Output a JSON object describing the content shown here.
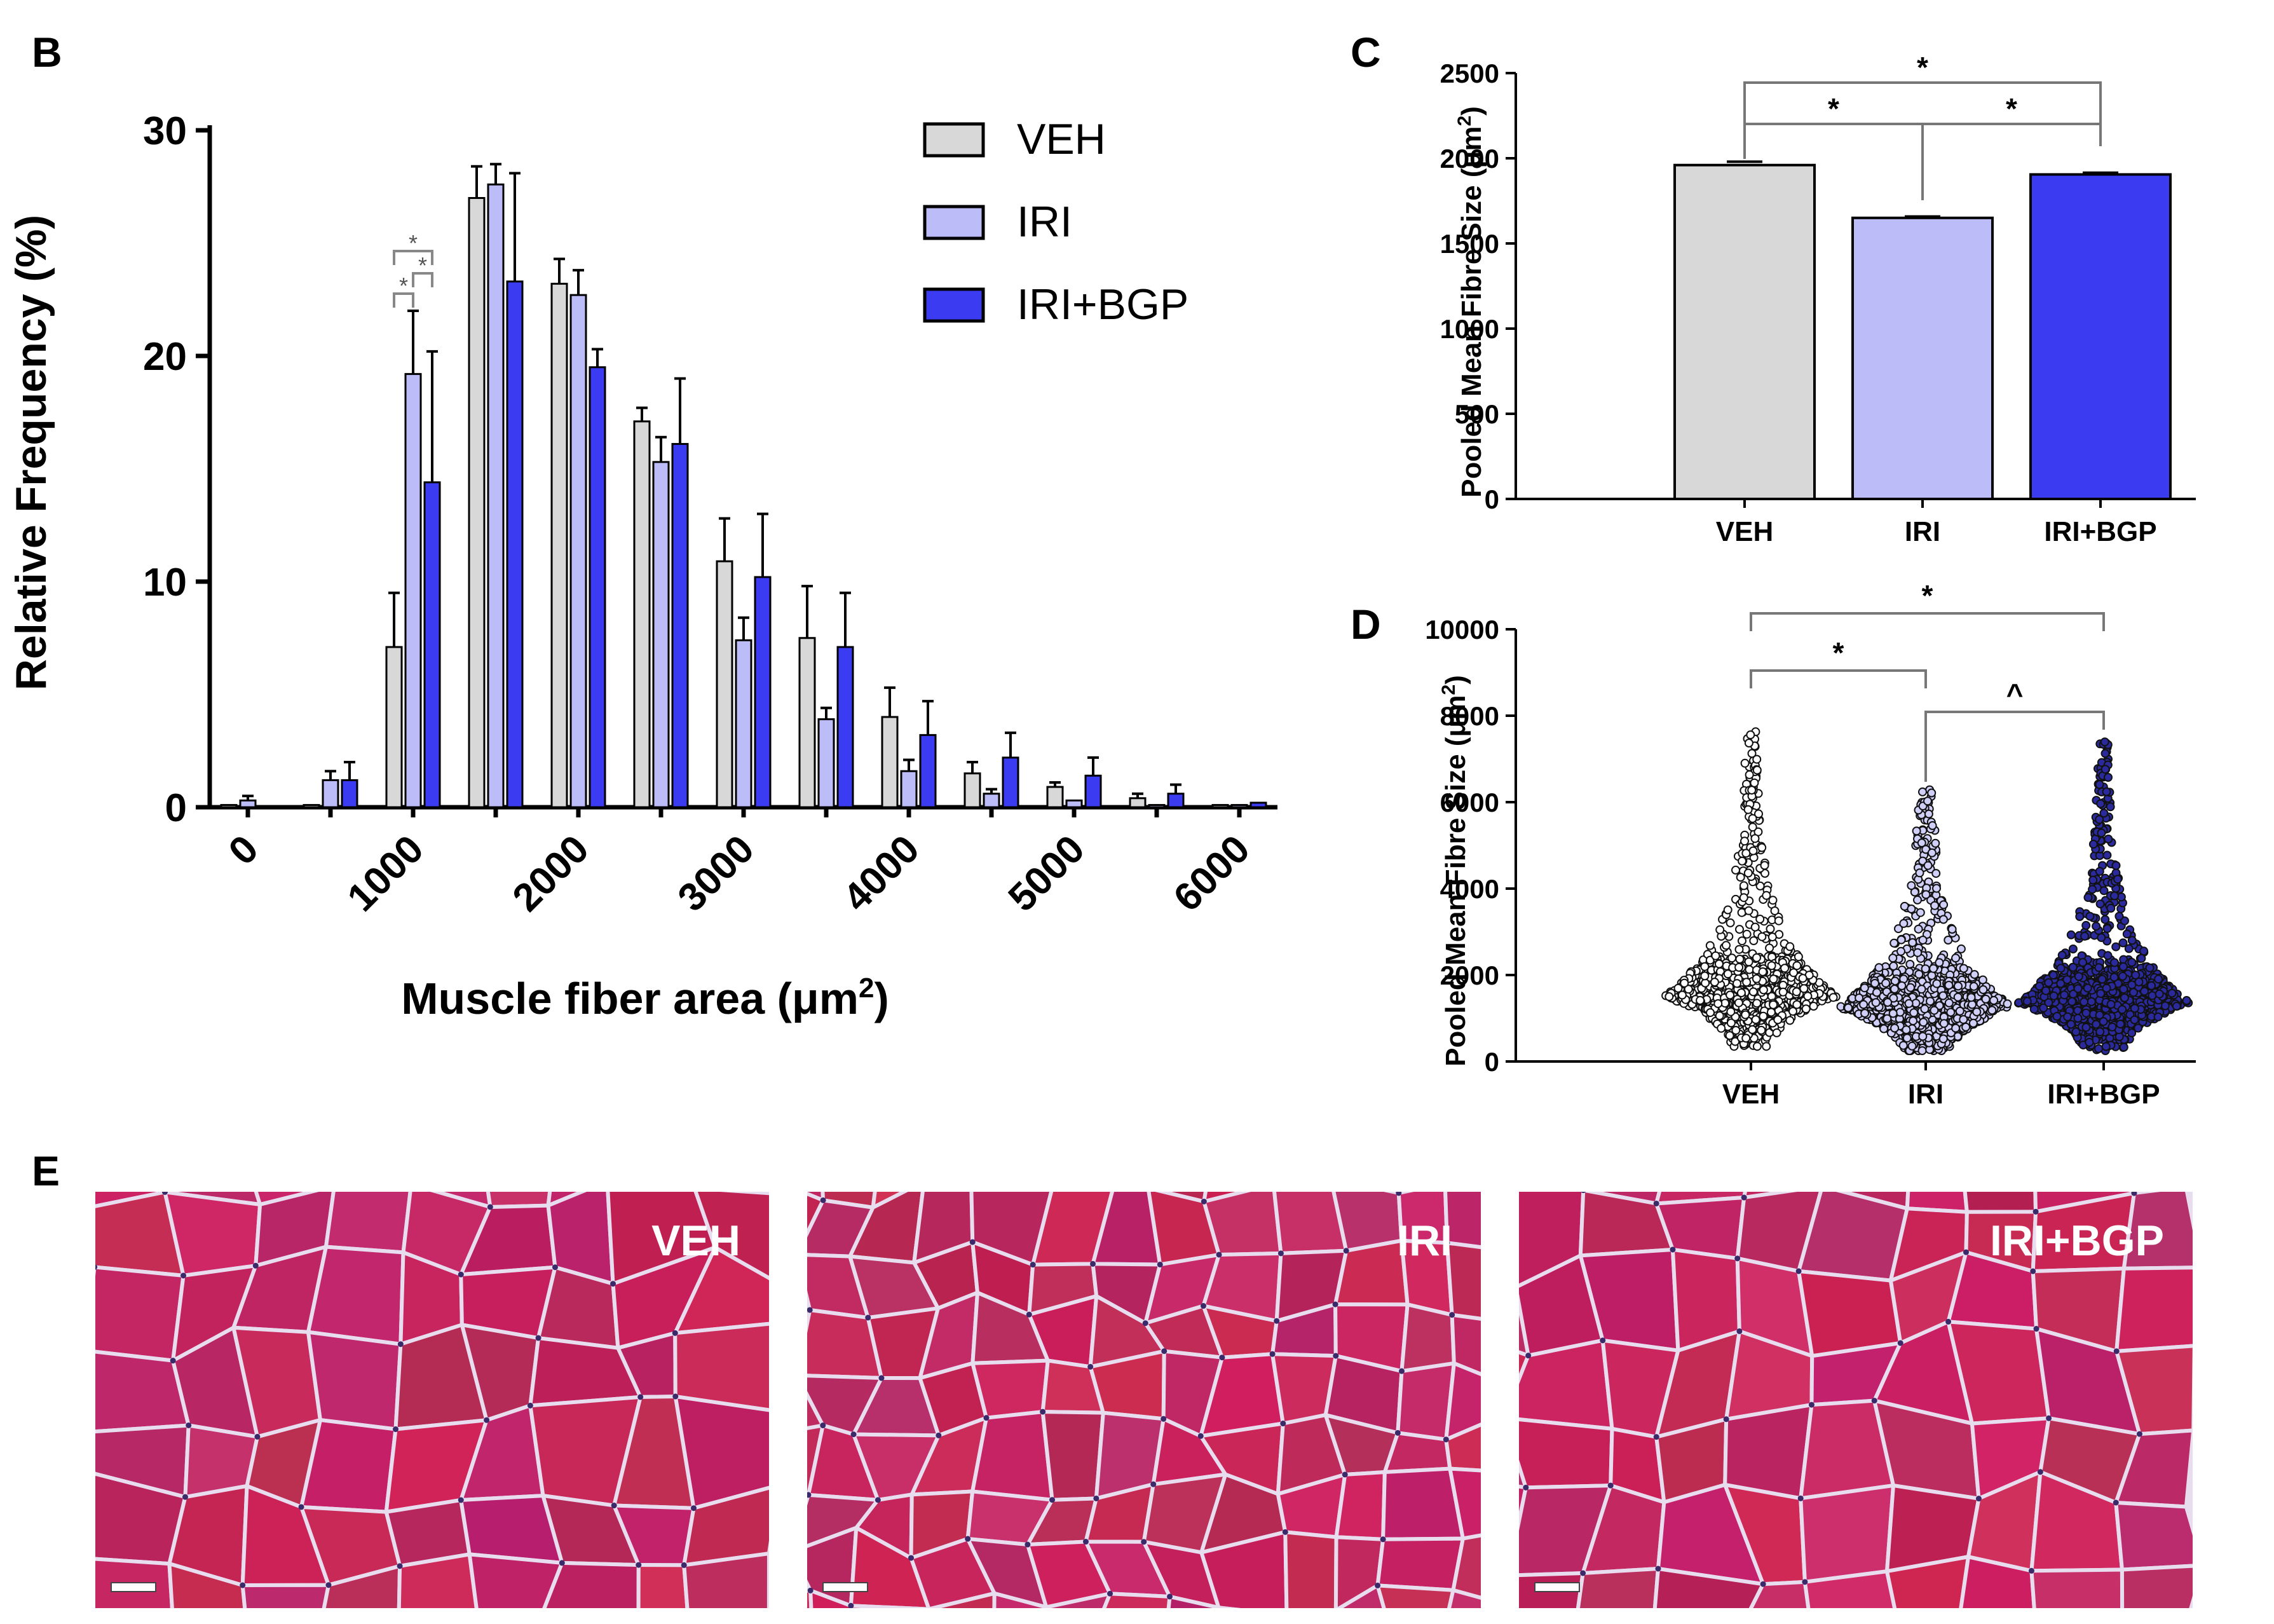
{
  "colors": {
    "VEH": "#d8d8d8",
    "IRI": "#bcbcf8",
    "IRI+BGP": "#3b3bf2",
    "tissue": "#c0306a",
    "membrane": "#e8dcef"
  },
  "panels": {
    "B": "B",
    "C": "C",
    "D": "D",
    "E": "E"
  },
  "chart_data": [
    {
      "panel": "B",
      "type": "bar",
      "title": "",
      "xlabel": "Muscle fiber area (μm",
      "xlabel_sup": "2",
      "xlabel_close": ")",
      "ylabel": "Relative Frequency (%)",
      "ylim": [
        0,
        30
      ],
      "yticks": [
        "0",
        "10",
        "20",
        "30"
      ],
      "xticks": [
        "0",
        "1000",
        "2000",
        "3000",
        "4000",
        "5000",
        "6000"
      ],
      "xtick_values": [
        0,
        1000,
        2000,
        3000,
        4000,
        5000,
        6000
      ],
      "bin_centers": [
        0,
        500,
        1000,
        1500,
        2000,
        2500,
        3000,
        3500,
        4000,
        4500,
        5000,
        5500,
        6000
      ],
      "legend": [
        "VEH",
        "IRI",
        "IRI+BGP"
      ],
      "legend_position": "top-right",
      "series": [
        {
          "name": "VEH",
          "values": [
            0.1,
            0.1,
            7.1,
            27.0,
            23.2,
            17.1,
            10.9,
            7.5,
            4.0,
            1.5,
            0.9,
            0.4,
            0.1
          ],
          "errors": [
            0.1,
            0.1,
            2.4,
            1.4,
            1.1,
            0.6,
            1.9,
            2.3,
            1.3,
            0.5,
            0.2,
            0.2,
            0.1
          ]
        },
        {
          "name": "IRI",
          "values": [
            0.3,
            1.2,
            19.2,
            27.6,
            22.7,
            15.3,
            7.4,
            3.9,
            1.6,
            0.6,
            0.3,
            0.1,
            0.1
          ],
          "errors": [
            0.2,
            0.4,
            2.8,
            0.9,
            1.1,
            1.1,
            1.0,
            0.5,
            0.5,
            0.2,
            0.1,
            0.1,
            0.1
          ]
        },
        {
          "name": "IRI+BGP",
          "values": [
            0.0,
            1.2,
            14.4,
            23.3,
            19.5,
            16.1,
            10.2,
            7.1,
            3.2,
            2.2,
            1.4,
            0.6,
            0.2
          ],
          "errors": [
            0.0,
            0.8,
            5.8,
            4.8,
            0.8,
            2.9,
            2.8,
            2.4,
            1.5,
            1.1,
            0.8,
            0.4,
            0.1
          ]
        }
      ],
      "annotations": [
        {
          "label": "*",
          "between": [
            "VEH",
            "IRI"
          ],
          "bin": 1000
        },
        {
          "label": "*",
          "between": [
            "VEH",
            "IRI+BGP"
          ],
          "bin": 1000
        },
        {
          "label": "*",
          "between": [
            "IRI",
            "IRI+BGP"
          ],
          "bin": 1000
        }
      ]
    },
    {
      "panel": "C",
      "type": "bar",
      "title": "",
      "ylabel": "Pooled Mean Fibre Size (μm",
      "ylabel_sup": "2",
      "ylabel_close": ")",
      "ylim": [
        0,
        2500
      ],
      "yticks": [
        "0",
        "500",
        "1000",
        "1500",
        "2000",
        "2500"
      ],
      "categories": [
        "VEH",
        "IRI",
        "IRI+BGP"
      ],
      "values": [
        1960,
        1650,
        1905
      ],
      "errors": [
        20,
        8,
        10
      ],
      "annotations": [
        {
          "label": "*",
          "between": [
            "VEH",
            "IRI"
          ]
        },
        {
          "label": "*",
          "between": [
            "IRI",
            "IRI+BGP"
          ]
        },
        {
          "label": "*",
          "between": [
            "VEH",
            "IRI+BGP"
          ]
        }
      ]
    },
    {
      "panel": "D",
      "type": "scatter",
      "title": "",
      "ylabel": "Pooled Mean Fibre Size (μm",
      "ylabel_sup": "2",
      "ylabel_close": ")",
      "ylim": [
        0,
        10000
      ],
      "yticks": [
        "0",
        "2000",
        "4000",
        "6000",
        "8000",
        "10000"
      ],
      "categories": [
        "VEH",
        "IRI",
        "IRI+BGP"
      ],
      "distributions": [
        {
          "name": "VEH",
          "min": 350,
          "mode": 1500,
          "max": 7700
        },
        {
          "name": "IRI",
          "min": 250,
          "mode": 1250,
          "max": 6300
        },
        {
          "name": "IRI+BGP",
          "min": 250,
          "mode": 1350,
          "max": 7400
        }
      ],
      "annotations": [
        {
          "label": "*",
          "between": [
            "VEH",
            "IRI"
          ]
        },
        {
          "label": "^",
          "between": [
            "IRI",
            "IRI+BGP"
          ]
        },
        {
          "label": "*",
          "between": [
            "VEH",
            "IRI+BGP"
          ]
        }
      ]
    }
  ],
  "micrographs": [
    {
      "label": "VEH"
    },
    {
      "label": "IRI"
    },
    {
      "label": "IRI+BGP"
    }
  ]
}
